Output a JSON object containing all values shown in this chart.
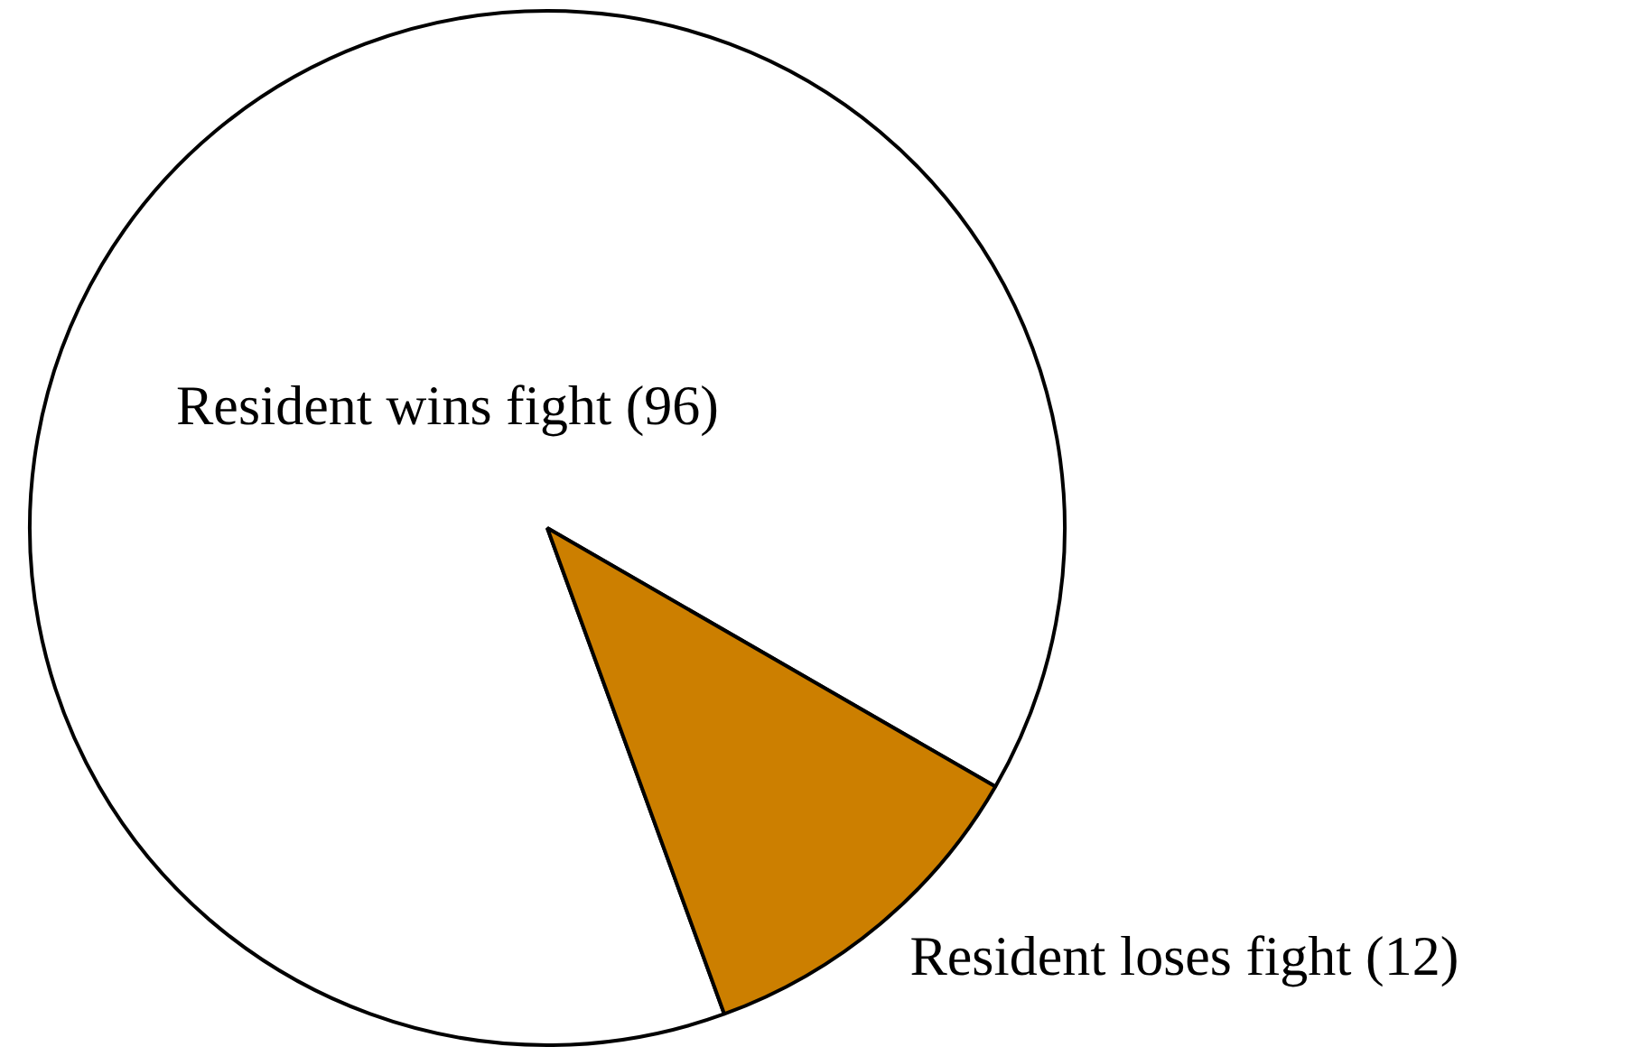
{
  "chart_data": {
    "type": "pie",
    "categories": [
      "Resident wins fight (96)",
      "Resident loses fight (12)"
    ],
    "values": [
      96,
      12
    ],
    "colors": [
      "#ffffff",
      "#cc7f00"
    ],
    "legend": false
  }
}
